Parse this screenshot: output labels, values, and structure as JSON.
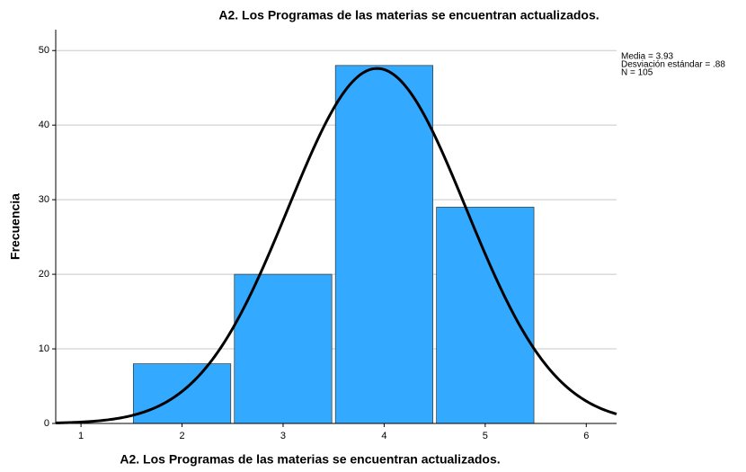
{
  "chart_data": {
    "type": "histogram",
    "title": "A2. Los Programas de las materias se encuentran actualizados.",
    "xlabel": "A2. Los Programas de las materias se encuentran actualizados.",
    "ylabel": "Frecuencia",
    "bins": [
      1.5,
      2.5,
      3.5,
      4.5,
      5.5
    ],
    "values": [
      8,
      20,
      48,
      29
    ],
    "color": "#33aaff",
    "curve_color": "#000000",
    "xlim": [
      0.75,
      6.3
    ],
    "xticks": [
      1,
      2,
      3,
      4,
      5,
      6
    ],
    "ylim": [
      0,
      52.8
    ],
    "yticks": [
      0,
      10,
      20,
      30,
      40,
      50
    ],
    "grid": true,
    "stats": [
      {
        "value": 3.93,
        "label": "Media = 3.93"
      },
      {
        "value": 0.88,
        "label": "Desviación estándar = .88"
      },
      {
        "value": 105,
        "label": "N = 105"
      }
    ]
  }
}
